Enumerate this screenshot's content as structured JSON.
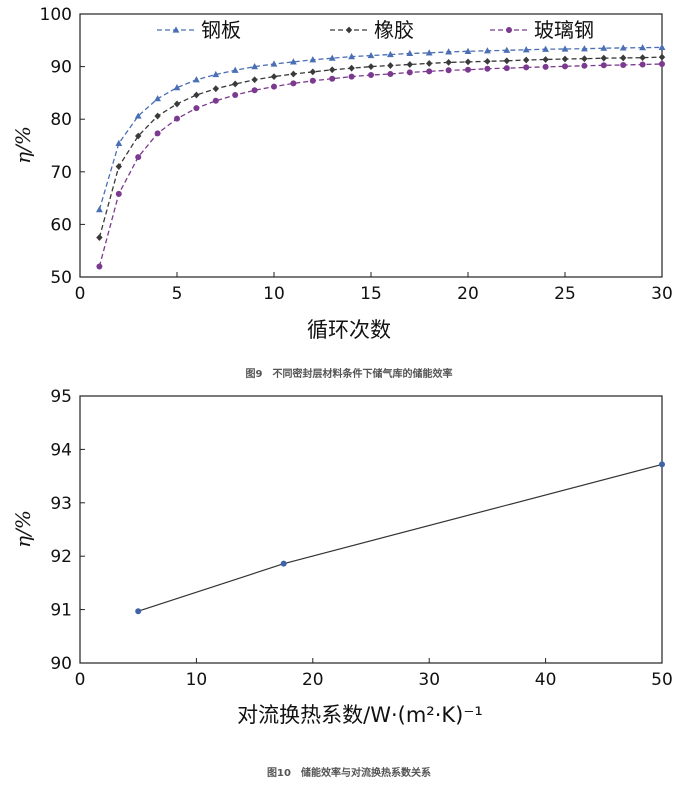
{
  "chart_data": [
    {
      "type": "line",
      "caption": "图9　不同密封层材料条件下储气库的储能效率",
      "xlabel": "循环次数",
      "ylabel": "η/%",
      "xlim": [
        0,
        30
      ],
      "ylim": [
        50,
        100
      ],
      "xticks": [
        0,
        5,
        10,
        15,
        20,
        25,
        30
      ],
      "yticks": [
        50,
        60,
        70,
        80,
        90,
        100
      ],
      "grid": false,
      "legend_position": "top",
      "x": [
        1,
        2,
        3,
        4,
        5,
        6,
        7,
        8,
        9,
        10,
        11,
        12,
        13,
        14,
        15,
        16,
        17,
        18,
        19,
        20,
        21,
        22,
        23,
        24,
        25,
        26,
        27,
        28,
        29,
        30
      ],
      "series": [
        {
          "name": "钢板",
          "marker": "triangle",
          "color": "#4a6fb5",
          "values": [
            62.8,
            75.4,
            80.6,
            83.9,
            86.0,
            87.5,
            88.5,
            89.3,
            90.0,
            90.5,
            90.9,
            91.3,
            91.6,
            91.9,
            92.1,
            92.3,
            92.5,
            92.6,
            92.8,
            92.9,
            93.0,
            93.1,
            93.2,
            93.3,
            93.35,
            93.4,
            93.5,
            93.55,
            93.6,
            93.65
          ]
        },
        {
          "name": "橡胶",
          "marker": "diamond",
          "color": "#3a3a3a",
          "values": [
            57.5,
            71.0,
            76.8,
            80.6,
            82.9,
            84.6,
            85.8,
            86.7,
            87.5,
            88.1,
            88.6,
            89.0,
            89.4,
            89.7,
            90.0,
            90.2,
            90.4,
            90.6,
            90.8,
            90.9,
            91.0,
            91.1,
            91.25,
            91.35,
            91.45,
            91.5,
            91.6,
            91.65,
            91.7,
            91.8
          ]
        },
        {
          "name": "玻璃钢",
          "marker": "circle",
          "color": "#7b3a8f",
          "values": [
            52.0,
            65.8,
            72.8,
            77.3,
            80.1,
            82.1,
            83.5,
            84.6,
            85.5,
            86.2,
            86.8,
            87.3,
            87.7,
            88.1,
            88.4,
            88.6,
            88.9,
            89.1,
            89.3,
            89.4,
            89.6,
            89.7,
            89.85,
            89.95,
            90.05,
            90.15,
            90.25,
            90.3,
            90.4,
            90.5
          ]
        }
      ]
    },
    {
      "type": "line",
      "caption": "图10　储能效率与对流换热系数关系",
      "xlabel": "对流换热系数/W·(m²·K)⁻¹",
      "ylabel": "η/%",
      "xlim": [
        0,
        50
      ],
      "ylim": [
        90,
        95
      ],
      "xticks": [
        0,
        10,
        20,
        30,
        40,
        50
      ],
      "yticks": [
        90,
        91,
        92,
        93,
        94,
        95
      ],
      "grid": false,
      "x": [
        5,
        17.5,
        50
      ],
      "series": [
        {
          "marker": "circle",
          "color": "#3f63a6",
          "line_color": "#333333",
          "values": [
            90.97,
            91.86,
            93.72
          ]
        }
      ]
    }
  ]
}
